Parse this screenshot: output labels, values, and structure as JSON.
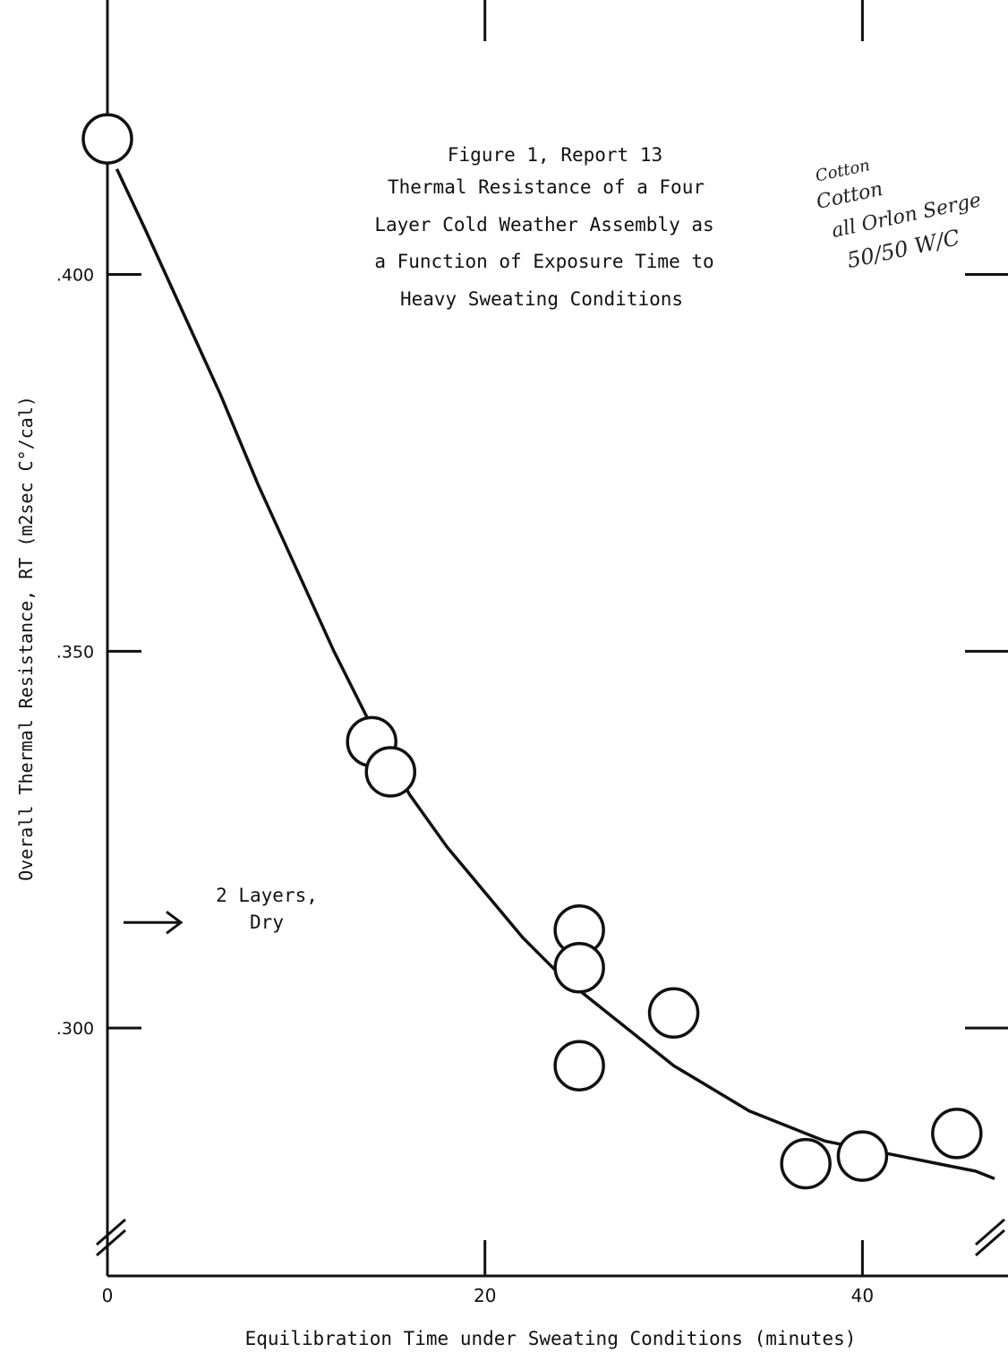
{
  "chart_data": {
    "type": "scatter",
    "title_lines": [
      "Figure 1, Report 13",
      "Thermal Resistance of a Four",
      "Layer Cold Weather Assembly as",
      "a Function of Exposure Time to",
      "Heavy Sweating Conditions"
    ],
    "xlabel": "Equilibration Time under Sweating Conditions (minutes)",
    "ylabel": "Overall Thermal Resistance, RT (m2sec C°/cal)",
    "xlim": [
      0,
      47
    ],
    "ylim": [
      0.269,
      0.435
    ],
    "x_ticks": [
      0,
      20,
      40
    ],
    "x_tick_labels": [
      "0",
      "20",
      "40"
    ],
    "y_ticks": [
      0.3,
      0.35,
      0.4
    ],
    "y_tick_labels": [
      ".300",
      ".350",
      ".400"
    ],
    "axis_breaks": true,
    "grid": false,
    "points": [
      {
        "x": 0,
        "y": 0.418
      },
      {
        "x": 14,
        "y": 0.338
      },
      {
        "x": 15,
        "y": 0.334
      },
      {
        "x": 25,
        "y": 0.313
      },
      {
        "x": 25,
        "y": 0.308
      },
      {
        "x": 30,
        "y": 0.302
      },
      {
        "x": 25,
        "y": 0.295
      },
      {
        "x": 37,
        "y": 0.282
      },
      {
        "x": 40,
        "y": 0.283
      },
      {
        "x": 45,
        "y": 0.286
      }
    ],
    "fit_curve": {
      "x": [
        0.5,
        2,
        4,
        6,
        8,
        10,
        12,
        14,
        16,
        18,
        20,
        22,
        24,
        26,
        28,
        30,
        32,
        34,
        36,
        38,
        40,
        42,
        44,
        46,
        47
      ],
      "y": [
        0.414,
        0.406,
        0.395,
        0.384,
        0.372,
        0.361,
        0.35,
        0.34,
        0.331,
        0.324,
        0.318,
        0.312,
        0.307,
        0.303,
        0.299,
        0.295,
        0.292,
        0.289,
        0.287,
        0.285,
        0.284,
        0.283,
        0.282,
        0.281,
        0.28
      ]
    },
    "annotation": {
      "lines": [
        "2 Layers,",
        "Dry"
      ],
      "y": 0.314
    },
    "handwritten_note": [
      "Cotton",
      "Cotton",
      "all Orlon Serge",
      "50/50 W/C"
    ]
  }
}
